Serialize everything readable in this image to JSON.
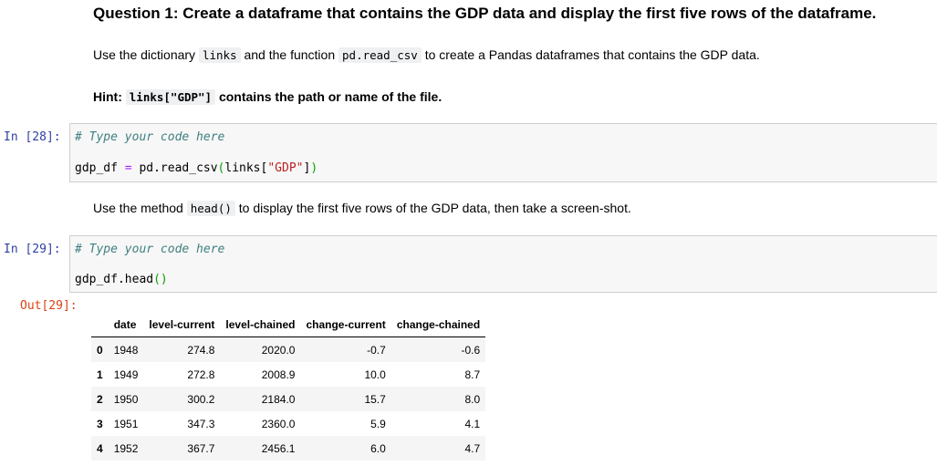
{
  "markdown": {
    "title": "Question 1: Create a dataframe that contains the GDP data and display the first five rows of the dataframe.",
    "instr1_pre": "Use the dictionary ",
    "instr1_code1": "links",
    "instr1_mid": " and the function ",
    "instr1_code2": "pd.read_csv",
    "instr1_post": " to create a Pandas dataframes that contains the GDP data.",
    "hint_pre": "Hint: ",
    "hint_code": "links[\"GDP\"]",
    "hint_post": " contains the path or name of the file.",
    "instr2_pre": "Use the method ",
    "instr2_code": "head()",
    "instr2_post": " to display the first five rows of the GDP data, then take a screen-shot."
  },
  "cells": [
    {
      "prompt": "In [28]:",
      "comment": "# Type your code here",
      "code_var": "gdp_df",
      "code_op": "=",
      "code_call": "pd.read_csv",
      "code_open": "(",
      "code_arg_pre": "links[",
      "code_str": "\"GDP\"",
      "code_arg_post": "]",
      "code_close": ")"
    },
    {
      "prompt": "In [29]:",
      "comment": "# Type your code here",
      "code": "gdp_df.head",
      "code_open": "(",
      "code_close": ")"
    }
  ],
  "output": {
    "prompt": "Out[29]:",
    "columns": [
      "",
      "date",
      "level-current",
      "level-chained",
      "change-current",
      "change-chained"
    ],
    "rows": [
      [
        "0",
        "1948",
        "274.8",
        "2020.0",
        "-0.7",
        "-0.6"
      ],
      [
        "1",
        "1949",
        "272.8",
        "2008.9",
        "10.0",
        "8.7"
      ],
      [
        "2",
        "1950",
        "300.2",
        "2184.0",
        "15.7",
        "8.0"
      ],
      [
        "3",
        "1951",
        "347.3",
        "2360.0",
        "5.9",
        "4.1"
      ],
      [
        "4",
        "1952",
        "367.7",
        "2456.1",
        "6.0",
        "4.7"
      ]
    ]
  }
}
